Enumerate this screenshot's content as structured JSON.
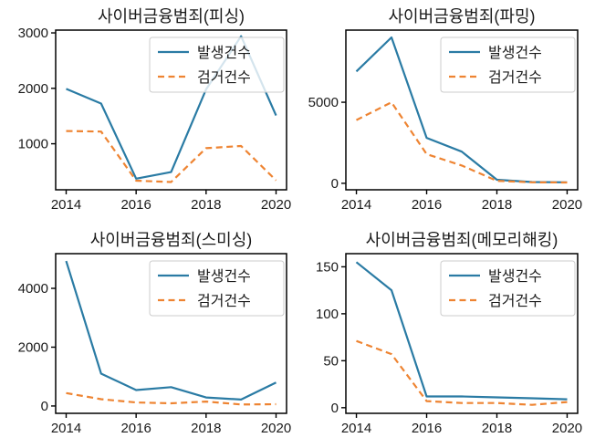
{
  "figure": {
    "background_color": "#ffffff",
    "text_color": "#1a1a1a",
    "spine_color": "#000000",
    "legend_border_color": "#cccccc"
  },
  "legend": {
    "occurrence_label": "발생건수",
    "arrest_label": "검거건수",
    "position": "upper right"
  },
  "colors": {
    "occurrence": "#2a7ba4",
    "arrest": "#ee8432"
  },
  "chart_data": [
    {
      "id": "phishing",
      "type": "line",
      "title": "사이버금융범죄(피싱)",
      "x": [
        2014,
        2015,
        2016,
        2017,
        2018,
        2019,
        2020
      ],
      "xticks": [
        2014,
        2016,
        2018,
        2020
      ],
      "yticks": [
        1000,
        2000,
        3000
      ],
      "xlim": [
        2013.7,
        2020.3
      ],
      "ylim": [
        170,
        3050
      ],
      "grid": false,
      "legend_position": "upper right",
      "series": [
        {
          "name": "발생건수",
          "style": "solid",
          "color": "#2a7ba4",
          "values": [
            1990,
            1725,
            370,
            490,
            1980,
            2940,
            1510
          ]
        },
        {
          "name": "검거건수",
          "style": "dashed",
          "color": "#ee8432",
          "values": [
            1230,
            1220,
            335,
            310,
            920,
            960,
            340
          ]
        }
      ]
    },
    {
      "id": "pharming",
      "type": "line",
      "title": "사이버금융범죄(파밍)",
      "x": [
        2014,
        2015,
        2016,
        2017,
        2018,
        2019,
        2020
      ],
      "xticks": [
        2014,
        2016,
        2018,
        2020
      ],
      "yticks": [
        0,
        5000
      ],
      "xlim": [
        2013.7,
        2020.3
      ],
      "ylim": [
        -400,
        9450
      ],
      "grid": false,
      "legend_position": "upper right",
      "series": [
        {
          "name": "발생건수",
          "style": "solid",
          "color": "#2a7ba4",
          "values": [
            6900,
            9000,
            2800,
            1950,
            220,
            80,
            60
          ]
        },
        {
          "name": "검거건수",
          "style": "dashed",
          "color": "#ee8432",
          "values": [
            3900,
            5000,
            1800,
            1100,
            150,
            60,
            50
          ]
        }
      ]
    },
    {
      "id": "smishing",
      "type": "line",
      "title": "사이버금융범죄(스미싱)",
      "x": [
        2014,
        2015,
        2016,
        2017,
        2018,
        2019,
        2020
      ],
      "xticks": [
        2014,
        2016,
        2018,
        2020
      ],
      "yticks": [
        0,
        2000,
        4000
      ],
      "xlim": [
        2013.7,
        2020.3
      ],
      "ylim": [
        -250,
        5180
      ],
      "grid": false,
      "legend_position": "upper right",
      "series": [
        {
          "name": "발생건수",
          "style": "solid",
          "color": "#2a7ba4",
          "values": [
            4930,
            1100,
            540,
            640,
            290,
            220,
            800
          ]
        },
        {
          "name": "검거건수",
          "style": "dashed",
          "color": "#ee8432",
          "values": [
            440,
            230,
            120,
            90,
            150,
            50,
            60
          ]
        }
      ]
    },
    {
      "id": "memory-hacking",
      "type": "line",
      "title": "사이버금융범죄(메모리해킹)",
      "x": [
        2014,
        2015,
        2016,
        2017,
        2018,
        2019,
        2020
      ],
      "xticks": [
        2014,
        2016,
        2018,
        2020
      ],
      "yticks": [
        0,
        50,
        100,
        150
      ],
      "xlim": [
        2013.7,
        2020.3
      ],
      "ylim": [
        -6,
        164
      ],
      "grid": false,
      "legend_position": "upper right",
      "series": [
        {
          "name": "발생건수",
          "style": "solid",
          "color": "#2a7ba4",
          "values": [
            155,
            125,
            12,
            12,
            11,
            10,
            9
          ]
        },
        {
          "name": "검거건수",
          "style": "dashed",
          "color": "#ee8432",
          "values": [
            71,
            57,
            7,
            5,
            5,
            3,
            6
          ]
        }
      ]
    }
  ]
}
